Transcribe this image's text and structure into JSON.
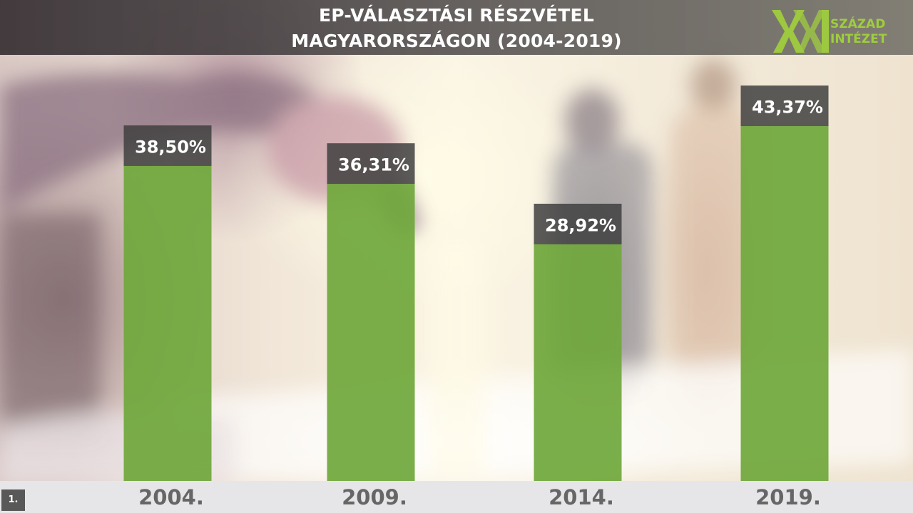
{
  "header": {
    "title_line1": "EP-VÁLASZTÁSI RÉSZVÉTEL",
    "title_line2": "MAGYARORSZÁGON (2004-2019)"
  },
  "logo": {
    "line1": "SZÁZAD",
    "line2": "INTÉZET",
    "color": "#9fcd3d",
    "icon": "xxi-logo-icon"
  },
  "chart_data": {
    "type": "bar",
    "categories": [
      "2004.",
      "2009.",
      "2014.",
      "2019."
    ],
    "values": [
      38.5,
      36.31,
      28.92,
      43.37
    ],
    "data_labels": [
      "38,50%",
      "36,31%",
      "28,92%",
      "43,37%"
    ],
    "title": "EP-VÁLASZTÁSI RÉSZVÉTEL MAGYARORSZÁGON (2004-2019)",
    "xlabel": "",
    "ylabel": "",
    "ylim": [
      0,
      50
    ],
    "bar_color": "#70a83c",
    "label_box_color": "#3f3f3f",
    "grid": false,
    "legend": "none"
  },
  "footer": {
    "page_number": "1."
  }
}
